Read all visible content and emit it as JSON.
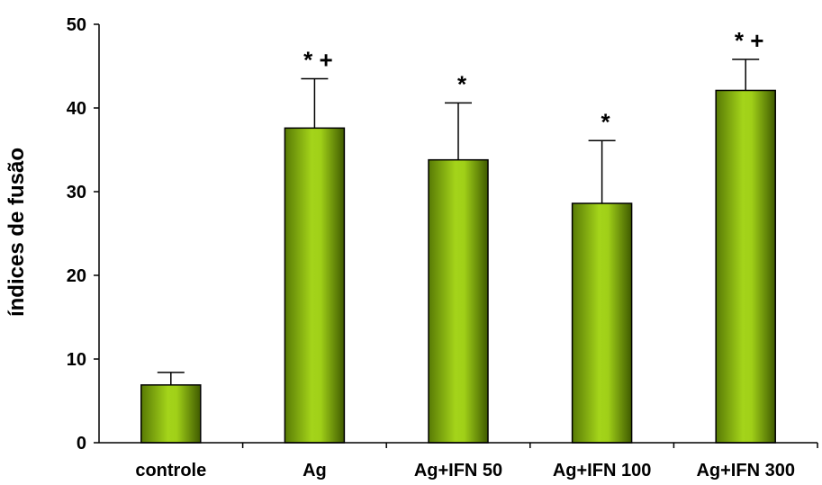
{
  "chart_data": {
    "type": "bar",
    "title": "",
    "xlabel": "",
    "ylabel": "índices de fusão",
    "ylim": [
      0,
      50
    ],
    "yticks": [
      0,
      10,
      20,
      30,
      40,
      50
    ],
    "grid": false,
    "legend": "none",
    "categories": [
      "controle",
      "Ag",
      "Ag+IFN 50",
      "Ag+IFN 100",
      "Ag+IFN 300"
    ],
    "values": [
      6.9,
      37.6,
      33.8,
      28.6,
      42.1
    ],
    "error_upper": [
      1.5,
      5.9,
      6.8,
      7.5,
      3.7
    ],
    "annotations": [
      "",
      "* +",
      "*",
      "*",
      "* +"
    ],
    "colors": {
      "bar_center": "#a4d41a",
      "bar_edge": "#3f5a00",
      "outline": "#000000",
      "axis": "#000000"
    }
  }
}
